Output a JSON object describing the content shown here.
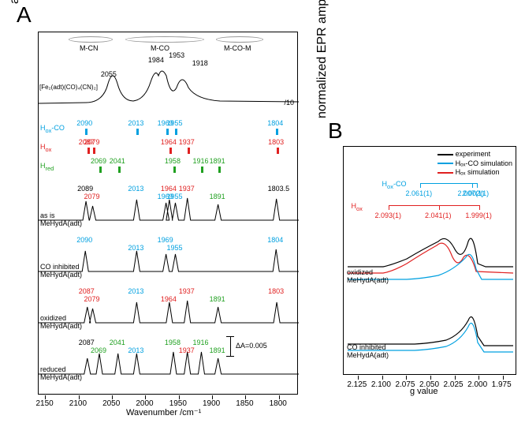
{
  "panelA": {
    "label": "A",
    "y_label": "absorbance",
    "x_label": "Wavenumber /cm⁻¹",
    "x_ticks": [
      2150,
      2100,
      2050,
      2000,
      1950,
      1900,
      1850,
      1800
    ],
    "x_min": 2160,
    "x_max": 1770,
    "regions": {
      "mcn": "M-CN",
      "mco": "M-CO",
      "mcom": "M-CO-M"
    },
    "top_trace_label": "[Fe₂(adt)(CO)₄(CN)₂]",
    "top_peaks": [
      {
        "wn": 2055,
        "label": "2055",
        "color": "#000"
      },
      {
        "wn": 1984,
        "label": "1984",
        "color": "#000"
      },
      {
        "wn": 1953,
        "label": "1953",
        "color": "#000"
      },
      {
        "wn": 1918,
        "label": "1918",
        "color": "#000"
      }
    ],
    "assignments": {
      "hox_co": {
        "label": "Hₒₓ-CO",
        "color": "#00a0e0",
        "peaks": [
          2090,
          2013,
          1969,
          1955,
          1804
        ]
      },
      "hox": {
        "label": "Hₒₓ",
        "color": "#e02020",
        "peaks": [
          2087,
          2079,
          1964,
          1937,
          1803
        ]
      },
      "hred": {
        "label": "H_{red}",
        "color": "#20a020",
        "peaks": [
          2069,
          2041,
          1958,
          1916,
          1891
        ]
      }
    },
    "traces": [
      {
        "label": "as is\nMeHydA(adt)",
        "peaks": [
          {
            "wn": 2089,
            "lbl": "2089",
            "c": "#000"
          },
          {
            "wn": 2079,
            "lbl": "2079",
            "c": "#e02020"
          },
          {
            "wn": 2013,
            "lbl": "2013",
            "c": "#00a0e0"
          },
          {
            "wn": 1969,
            "lbl": "1969",
            "c": "#00a0e0"
          },
          {
            "wn": 1964,
            "lbl": "1964",
            "c": "#e02020"
          },
          {
            "wn": 1955,
            "lbl": "1955",
            "c": "#00a0e0"
          },
          {
            "wn": 1937,
            "lbl": "1937",
            "c": "#e02020"
          },
          {
            "wn": 1891,
            "lbl": "1891",
            "c": "#20a020"
          },
          {
            "wn": 1803.5,
            "lbl": "1803.5",
            "c": "#000"
          }
        ]
      },
      {
        "label": "CO inhibited\nMeHydA(adt)",
        "peaks": [
          {
            "wn": 2090,
            "lbl": "2090",
            "c": "#00a0e0"
          },
          {
            "wn": 2013,
            "lbl": "2013",
            "c": "#00a0e0"
          },
          {
            "wn": 1969,
            "lbl": "1969",
            "c": "#00a0e0"
          },
          {
            "wn": 1955,
            "lbl": "1955",
            "c": "#00a0e0"
          },
          {
            "wn": 1804,
            "lbl": "1804",
            "c": "#00a0e0"
          }
        ]
      },
      {
        "label": "oxidized\nMeHydA(adt)",
        "peaks": [
          {
            "wn": 2087,
            "lbl": "2087",
            "c": "#e02020"
          },
          {
            "wn": 2079,
            "lbl": "2079",
            "c": "#e02020"
          },
          {
            "wn": 2013,
            "lbl": "2013",
            "c": "#00a0e0"
          },
          {
            "wn": 1964,
            "lbl": "1964",
            "c": "#e02020"
          },
          {
            "wn": 1937,
            "lbl": "1937",
            "c": "#e02020"
          },
          {
            "wn": 1891,
            "lbl": "1891",
            "c": "#20a020"
          },
          {
            "wn": 1803,
            "lbl": "1803",
            "c": "#e02020"
          }
        ]
      },
      {
        "label": "reduced\nMeHydA(adt)",
        "peaks": [
          {
            "wn": 2087,
            "lbl": "2087",
            "c": "#000"
          },
          {
            "wn": 2069,
            "lbl": "2069",
            "c": "#20a020"
          },
          {
            "wn": 2041,
            "lbl": "2041",
            "c": "#20a020"
          },
          {
            "wn": 2013,
            "lbl": "2013",
            "c": "#00a0e0"
          },
          {
            "wn": 1958,
            "lbl": "1958",
            "c": "#20a020"
          },
          {
            "wn": 1937,
            "lbl": "1937",
            "c": "#e02020"
          },
          {
            "wn": 1916,
            "lbl": "1916",
            "c": "#20a020"
          },
          {
            "wn": 1891,
            "lbl": "1891",
            "c": "#20a020"
          }
        ]
      }
    ],
    "scale_bar": "ΔA=0.005",
    "div10": "/10"
  },
  "panelB": {
    "label": "B",
    "y_label": "normalized EPR amplitude",
    "x_label": "g value",
    "x_ticks": [
      2.125,
      2.1,
      2.075,
      2.05,
      2.025,
      2.0,
      1.975
    ],
    "x_min": 2.14,
    "x_max": 1.96,
    "legend": [
      {
        "label": "experiment",
        "color": "#000"
      },
      {
        "label": "Hₒₓ-CO simulation",
        "color": "#00a0e0"
      },
      {
        "label": "Hₒₓ simulation",
        "color": "#e02020"
      }
    ],
    "g_hox_co": {
      "label": "Hₒₓ-CO",
      "color": "#00a0e0",
      "vals": [
        "2.061(1)",
        "2.007(1)",
        "2.002(1)"
      ],
      "g": [
        2.061,
        2.007,
        2.002
      ]
    },
    "g_hox": {
      "label": "Hₒₓ",
      "color": "#e02020",
      "vals": [
        "2.093(1)",
        "2.041(1)",
        "1.999(1)"
      ],
      "g": [
        2.093,
        2.041,
        1.999
      ]
    },
    "traces": [
      {
        "label": "oxidized\nMeHydA(adt)"
      },
      {
        "label": "CO inhibited\nMeHydA(adt)"
      }
    ]
  }
}
